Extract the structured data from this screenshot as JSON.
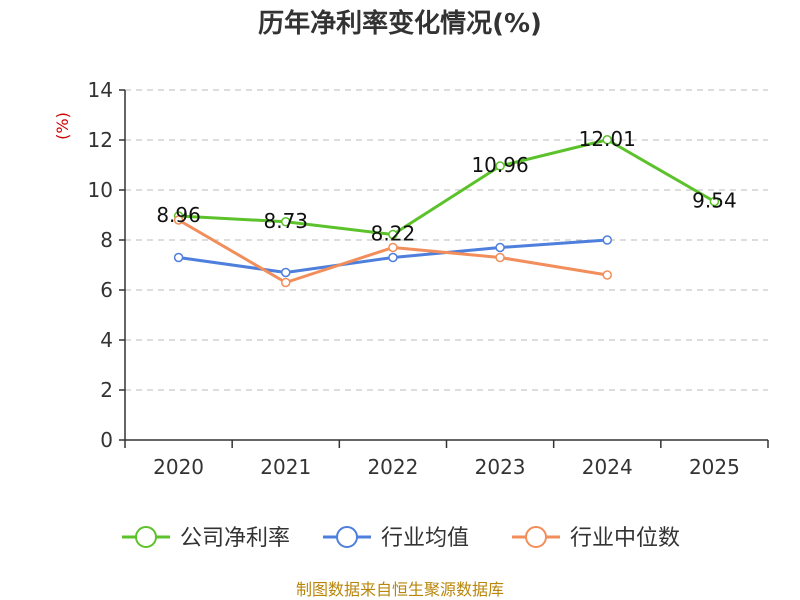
{
  "chart_data": {
    "type": "line",
    "title": "历年净利率变化情况(%)",
    "ylabel": "(%)",
    "xlabel": "",
    "categories": [
      "2020",
      "2021",
      "2022",
      "2023",
      "2024",
      "2025"
    ],
    "ylim": [
      0,
      14
    ],
    "yticks": [
      0,
      2,
      4,
      6,
      8,
      10,
      12,
      14
    ],
    "grid": true,
    "legend_position": "bottom",
    "series": [
      {
        "name": "公司净利率",
        "color": "#5cc22b",
        "values": [
          8.96,
          8.73,
          8.22,
          10.96,
          12.01,
          9.54
        ],
        "labels": [
          "8.96",
          "8.73",
          "8.22",
          "10.96",
          "12.01",
          "9.54"
        ]
      },
      {
        "name": "行业均值",
        "color": "#4e7fdc",
        "values": [
          7.3,
          6.7,
          7.3,
          7.7,
          8.0,
          null
        ],
        "labels": []
      },
      {
        "name": "行业中位数",
        "color": "#f28e5b",
        "values": [
          8.8,
          6.3,
          7.7,
          7.3,
          6.6,
          null
        ],
        "labels": []
      }
    ]
  },
  "source": "制图数据来自恒生聚源数据库"
}
